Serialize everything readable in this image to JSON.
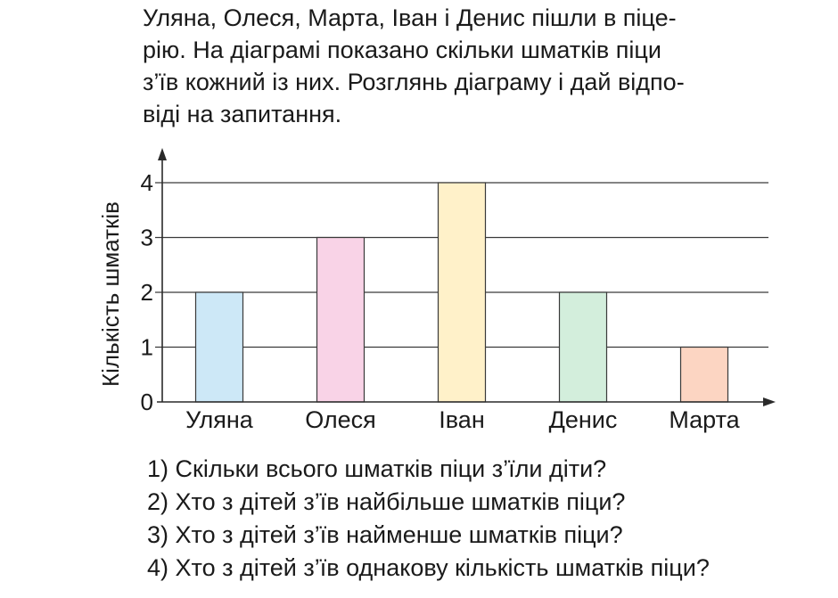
{
  "intro": [
    "Уляна, Олеся, Марта, Іван і Денис пішли в піце-",
    "рію. На діаграмі показано скільки шматків піци",
    "з’їв кожний із них. Розглянь діаграму і дай відпо-",
    "віді на запитання."
  ],
  "chart_data": {
    "type": "bar",
    "title": "",
    "xlabel": "",
    "ylabel": "Кількість шматків",
    "categories": [
      "Уляна",
      "Олеся",
      "Іван",
      "Денис",
      "Марта"
    ],
    "values": [
      2,
      3,
      4,
      2,
      1
    ],
    "colors": [
      "#cde8f7",
      "#f9d3e7",
      "#fff1c9",
      "#d3eedc",
      "#fcd5c2"
    ],
    "ylim": [
      0,
      4
    ],
    "yticks": [
      "0",
      "1",
      "2",
      "3",
      "4"
    ],
    "grid": true
  },
  "questions": [
    "1) Скільки всього шматків піци з’їли діти?",
    "2) Хто з дітей з’їв найбільше шматків піци?",
    "3) Хто з дітей з’їв найменше шматків  піци?",
    "4) Хто з дітей з’їв однакову кількість шматків піци?"
  ]
}
